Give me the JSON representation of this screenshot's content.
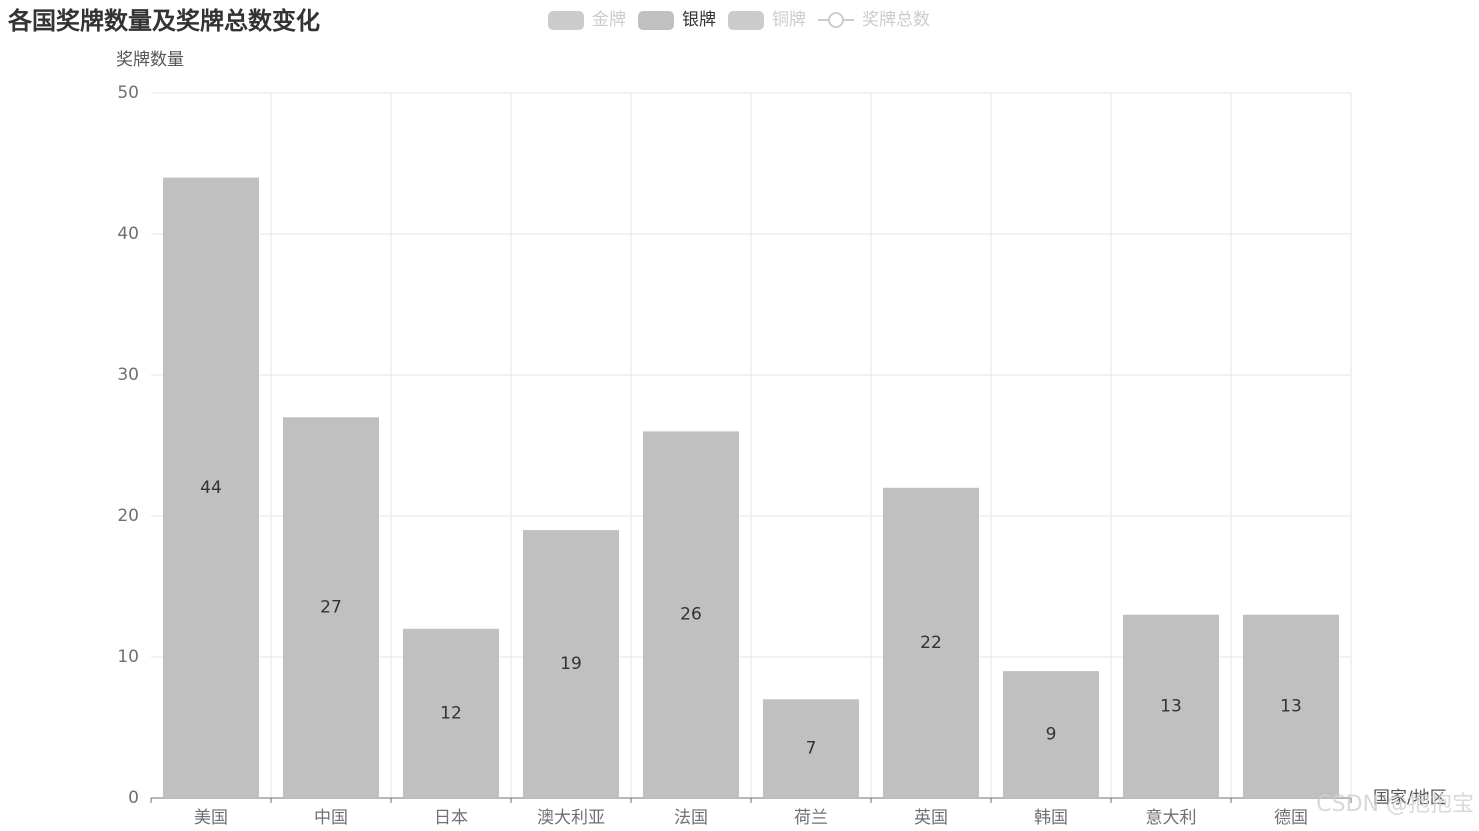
{
  "chart_data": {
    "type": "bar",
    "title": "各国奖牌数量及奖牌总数变化",
    "y_label": "奖牌数量",
    "x_label": "国家/地区",
    "categories": [
      "美国",
      "中国",
      "日本",
      "澳大利亚",
      "法国",
      "荷兰",
      "英国",
      "韩国",
      "意大利",
      "德国"
    ],
    "series": [
      {
        "name": "金牌",
        "color": "#cccccc",
        "visible": false
      },
      {
        "name": "银牌",
        "color": "#c0c0c0",
        "visible": true,
        "values": [
          44,
          27,
          12,
          19,
          26,
          7,
          22,
          9,
          13,
          13
        ]
      },
      {
        "name": "铜牌",
        "color": "#cccccc",
        "visible": false
      },
      {
        "name": "奖牌总数",
        "color": "#cccccc",
        "visible": false,
        "marker": "line"
      }
    ],
    "ylim": [
      0,
      50
    ],
    "yticks": [
      0,
      10,
      20,
      30,
      40,
      50
    ],
    "grid": true,
    "legend": "top",
    "watermark": "CSDN @抱抱宝"
  }
}
